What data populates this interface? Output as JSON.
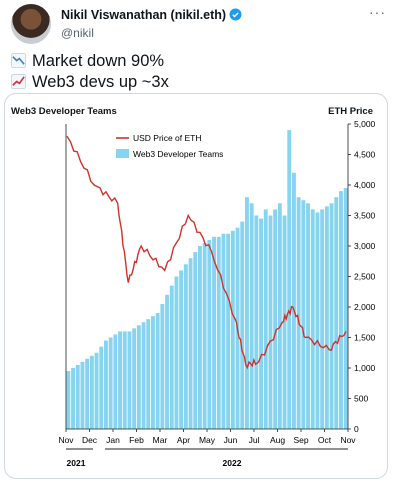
{
  "tweet": {
    "author_name": "Nikil Viswanathan (nikil.eth)",
    "handle": "@nikil",
    "lines": [
      {
        "icon": "chart-decreasing-icon",
        "text": "Market down 90%"
      },
      {
        "icon": "chart-increasing-icon",
        "text": "Web3 devs up ~3x"
      }
    ]
  },
  "colors": {
    "teams": "#87d4f1",
    "price": "#d0322a",
    "accent": "#1d9bf0"
  },
  "chart_data": {
    "type": "bar+line",
    "title_left": "Web3 Developer Teams",
    "title_right": "ETH Price",
    "legend": [
      "USD Price of ETH",
      "Web3 Developer Teams"
    ],
    "x_tick_labels": [
      "Nov",
      "Dec",
      "Jan",
      "Feb",
      "Mar",
      "Apr",
      "May",
      "Jun",
      "Jul",
      "Aug",
      "Sep",
      "Oct",
      "Nov"
    ],
    "year_labels": [
      "2021",
      "2022"
    ],
    "y2_ticks": [
      "0",
      "500",
      "1,000",
      "1,500",
      "2,000",
      "2,500",
      "3,000",
      "3,500",
      "4,000",
      "4,500",
      "5,000"
    ],
    "ylim": [
      0,
      5000
    ],
    "teams_weekly_on_price_scale": [
      950,
      1000,
      1050,
      1100,
      1150,
      1200,
      1250,
      1350,
      1450,
      1500,
      1550,
      1600,
      1600,
      1600,
      1650,
      1700,
      1750,
      1800,
      1850,
      1900,
      2050,
      2200,
      2350,
      2500,
      2600,
      2700,
      2800,
      2900,
      3000,
      3050,
      3100,
      3150,
      3150,
      3200,
      3200,
      3250,
      3300,
      3400,
      3800,
      3700,
      3500,
      3450,
      3600,
      3500,
      3600,
      3700,
      3500,
      4900,
      4200,
      3800,
      3750,
      3700,
      3600,
      3550,
      3600,
      3650,
      3700,
      3800,
      3900,
      3950
    ],
    "eth_price": [
      {
        "date": "Nov 2021",
        "value": 4800
      },
      {
        "date": "Dec 2021",
        "value": 4000
      },
      {
        "date": "Jan 2022",
        "value": 3700
      },
      {
        "date": "Jan 2022",
        "value": 2400
      },
      {
        "date": "Feb 2022",
        "value": 3000
      },
      {
        "date": "Mar 2022",
        "value": 2600
      },
      {
        "date": "Apr 2022",
        "value": 3500
      },
      {
        "date": "May 2022",
        "value": 2900
      },
      {
        "date": "Jun 2022",
        "value": 1800
      },
      {
        "date": "Jun 2022",
        "value": 1050
      },
      {
        "date": "Jul 2022",
        "value": 1100
      },
      {
        "date": "Aug 2022",
        "value": 1750
      },
      {
        "date": "Aug 2022",
        "value": 2000
      },
      {
        "date": "Sep 2022",
        "value": 1500
      },
      {
        "date": "Oct 2022",
        "value": 1300
      },
      {
        "date": "Nov 2022",
        "value": 1600
      }
    ]
  }
}
